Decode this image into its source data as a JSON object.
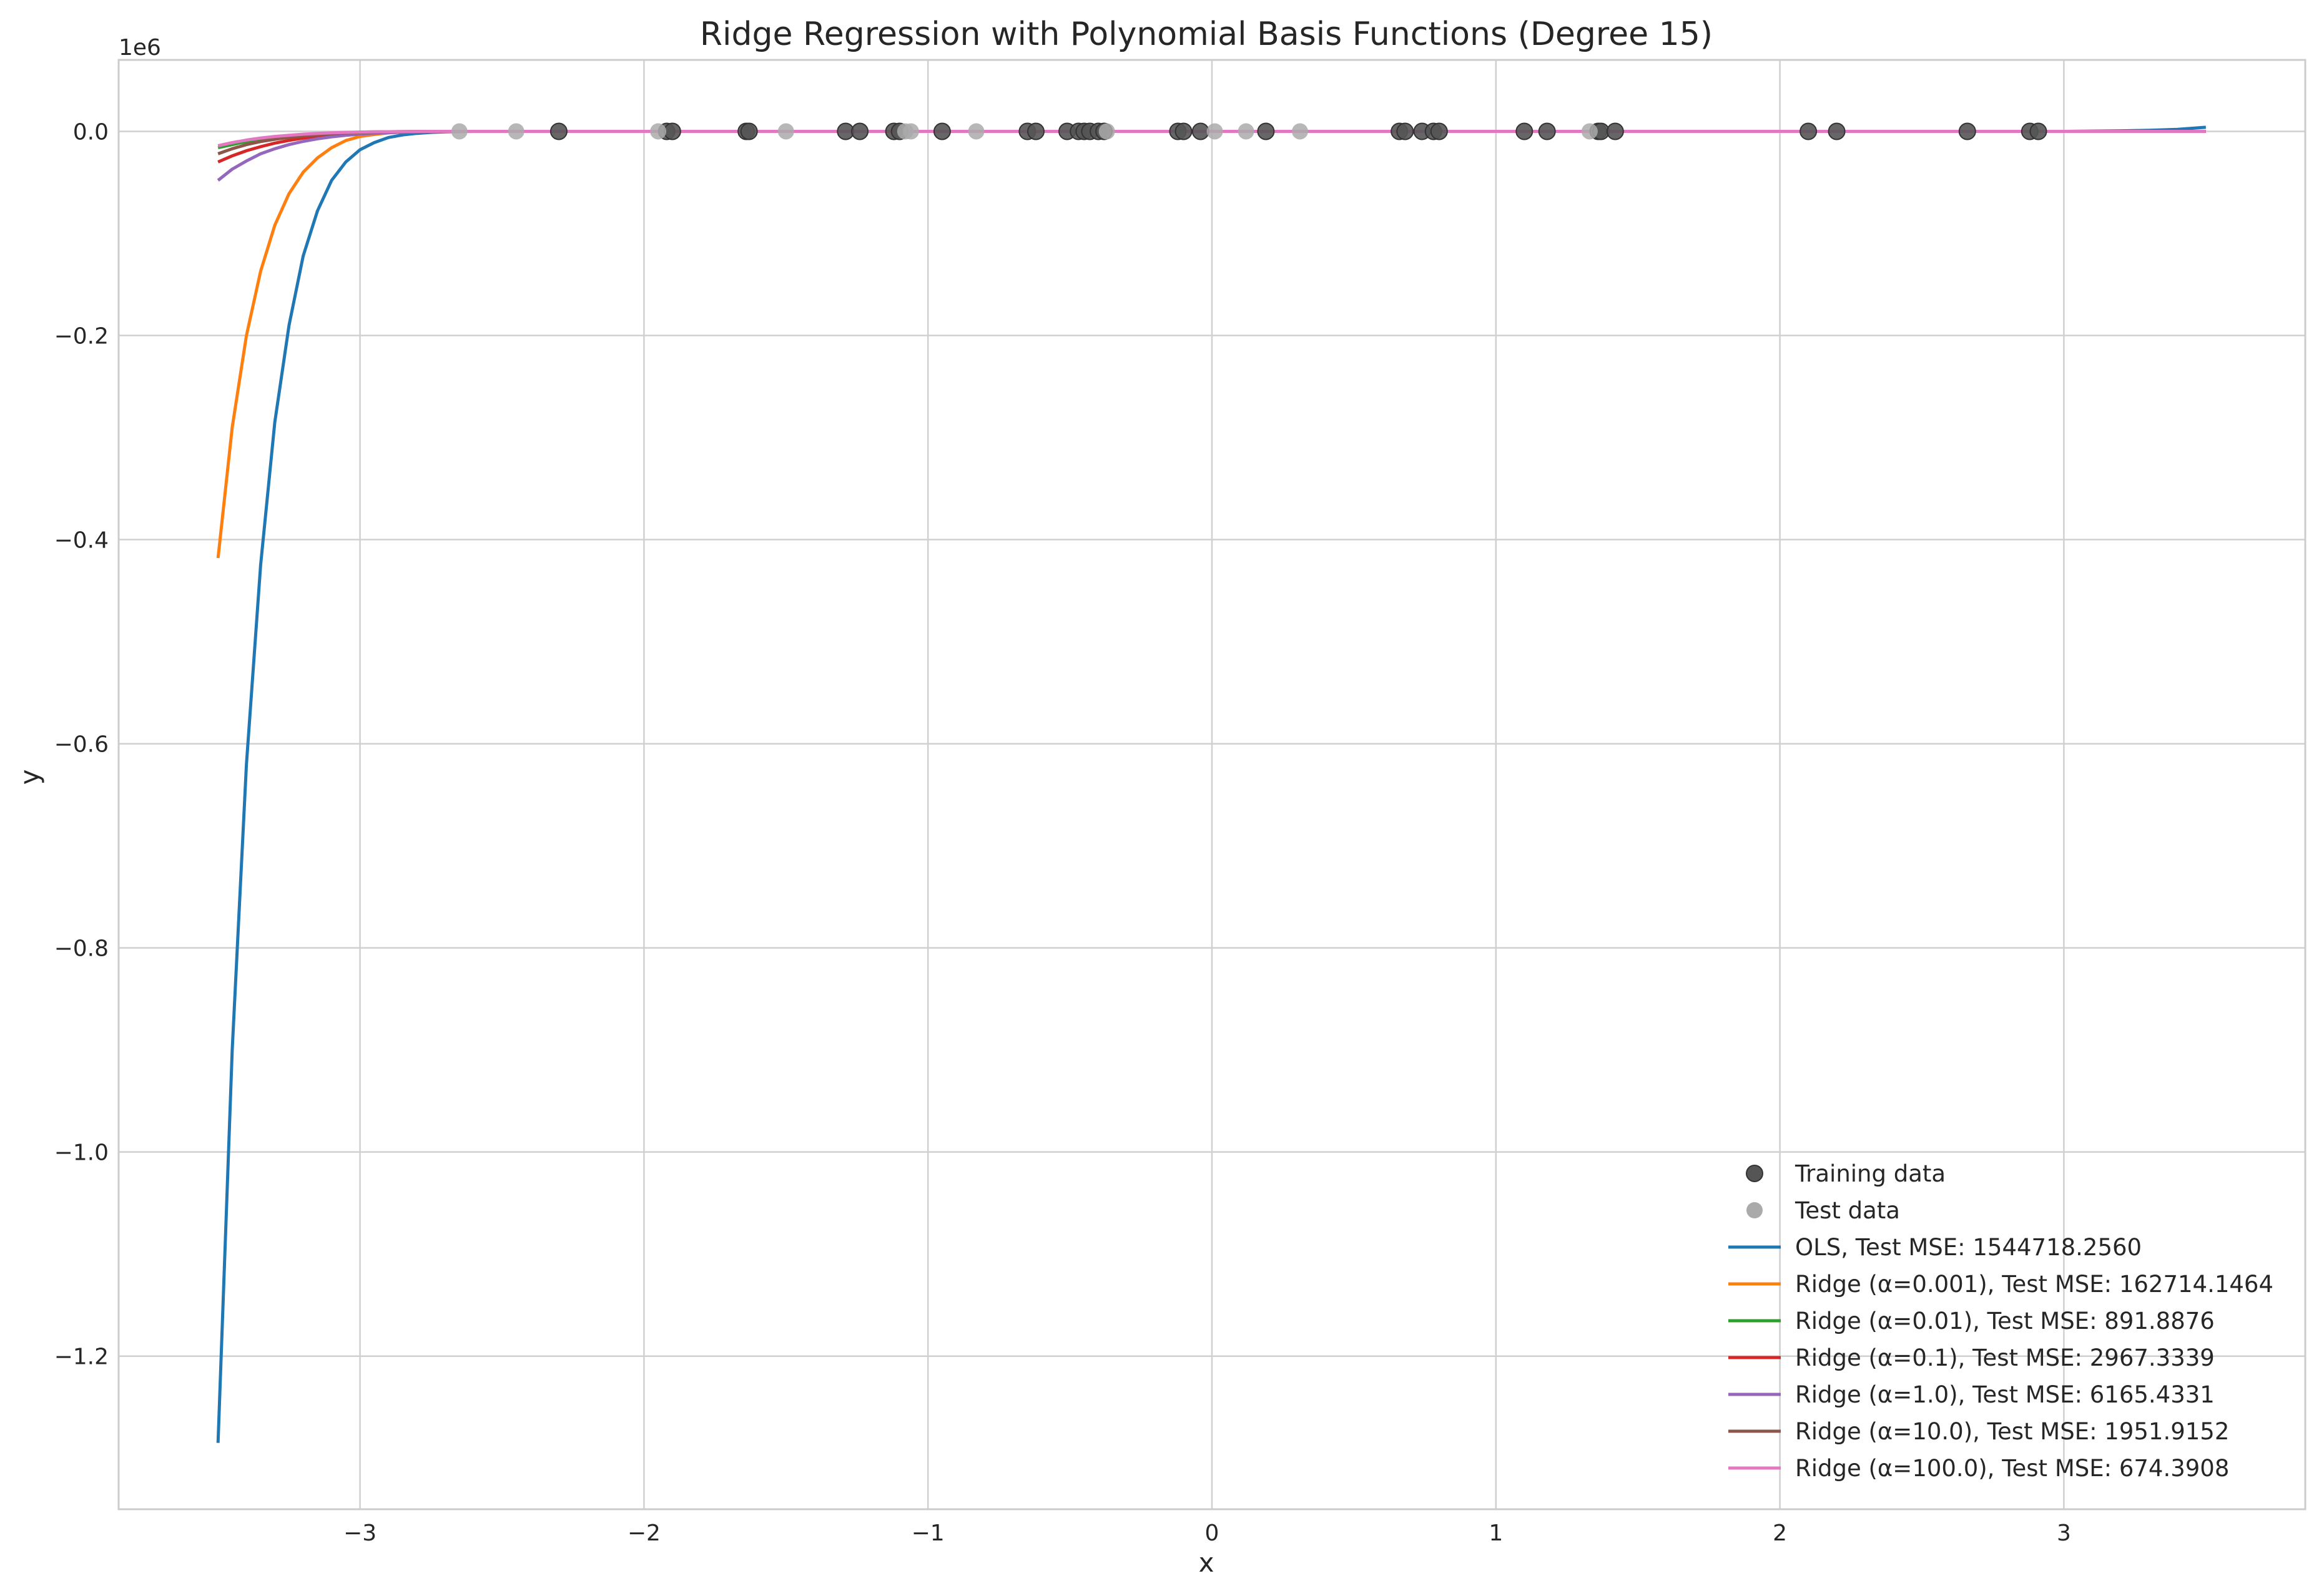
{
  "chart_data": {
    "type": "line",
    "title": "Ridge Regression with Polynomial Basis Functions (Degree 15)",
    "xlabel": "x",
    "ylabel": "y",
    "y_offset_label": "1e6",
    "xlim": [
      -3.85,
      3.85
    ],
    "ylim": [
      -1.35,
      0.07
    ],
    "grid": true,
    "legend_position": "lower-right",
    "x_ticks": [
      -3,
      -2,
      -1,
      0,
      1,
      2,
      3
    ],
    "x_tick_labels": [
      "−3",
      "−2",
      "−1",
      "0",
      "1",
      "2",
      "3"
    ],
    "y_ticks": [
      0.0,
      -0.2,
      -0.4,
      -0.6,
      -0.8,
      -1.0,
      -1.2
    ],
    "y_tick_labels": [
      "0.0",
      "−0.2",
      "−0.4",
      "−0.6",
      "−0.8",
      "−1.0",
      "−1.2"
    ],
    "scatter_series": [
      {
        "name": "Training data",
        "color": "#555555",
        "x": [
          -2.3,
          -1.92,
          -1.9,
          -1.64,
          -1.63,
          -1.29,
          -1.24,
          -1.12,
          -1.1,
          -0.95,
          -0.65,
          -0.62,
          -0.51,
          -0.47,
          -0.45,
          -0.43,
          -0.4,
          -0.38,
          -0.12,
          -0.1,
          -0.04,
          0.19,
          0.66,
          0.68,
          0.74,
          0.78,
          0.8,
          1.1,
          1.18,
          1.36,
          1.37,
          1.42,
          2.1,
          2.2,
          2.66,
          2.88,
          2.91
        ],
        "y": [
          0,
          0,
          0,
          0,
          0,
          0,
          0,
          0,
          0,
          0,
          0,
          0,
          0,
          0,
          0,
          0,
          0,
          0,
          0,
          0,
          0,
          0,
          0,
          0,
          0,
          0,
          0,
          0,
          0,
          0,
          0,
          0,
          0,
          0,
          0,
          0,
          0
        ]
      },
      {
        "name": "Test data",
        "color": "#aaaaaa",
        "x": [
          -2.65,
          -2.45,
          -1.95,
          -1.5,
          -1.08,
          -1.06,
          -0.83,
          -0.37,
          0.01,
          0.12,
          0.31,
          1.33
        ],
        "y": [
          0,
          0,
          0,
          0,
          0,
          0,
          0,
          0,
          0,
          0,
          0,
          0
        ]
      }
    ],
    "x": [
      -3.5,
      -3.45,
      -3.4,
      -3.35,
      -3.3,
      -3.25,
      -3.2,
      -3.15,
      -3.1,
      -3.05,
      -3.0,
      -2.95,
      -2.9,
      -2.85,
      -2.8,
      -2.75,
      -2.7,
      -2.65,
      -2.6,
      -2.5,
      -2.4,
      -2.2,
      -2.0,
      -1.5,
      -1.0,
      0.0,
      1.0,
      2.0,
      2.5,
      3.0,
      3.2,
      3.3,
      3.4,
      3.5
    ],
    "series": [
      {
        "name": "OLS, Test MSE: 1544718.2560",
        "color": "#1f77b4",
        "values": [
          -1.285,
          -0.9,
          -0.62,
          -0.425,
          -0.285,
          -0.19,
          -0.122,
          -0.078,
          -0.048,
          -0.03,
          -0.018,
          -0.011,
          -0.006,
          -0.0035,
          -0.002,
          -0.001,
          -0.0005,
          -0.0002,
          0,
          0,
          0,
          0,
          0,
          0,
          0,
          0,
          0,
          0,
          0,
          0,
          0.0005,
          0.001,
          0.002,
          0.004
        ]
      },
      {
        "name": "Ridge (α=0.001), Test MSE: 162714.1464",
        "color": "#ff7f0e",
        "values": [
          -0.418,
          -0.29,
          -0.2,
          -0.137,
          -0.092,
          -0.061,
          -0.04,
          -0.026,
          -0.016,
          -0.009,
          -0.005,
          -0.003,
          -0.0015,
          -0.0007,
          -0.0003,
          -0.0001,
          0,
          0,
          0,
          0,
          0,
          0,
          0,
          0,
          0,
          0,
          0,
          0,
          0,
          0,
          0,
          0,
          0,
          0
        ]
      },
      {
        "name": "Ridge (α=0.01), Test MSE: 891.8876",
        "color": "#2ca02c",
        "values": [
          -0.016,
          -0.013,
          -0.01,
          -0.008,
          -0.006,
          -0.0045,
          -0.0033,
          -0.0024,
          -0.0017,
          -0.0012,
          -0.0008,
          -0.0005,
          -0.0003,
          -0.0002,
          -0.0001,
          0,
          0,
          0,
          0,
          0,
          0,
          0,
          0,
          0,
          0,
          0,
          0,
          0,
          0,
          0,
          0,
          0,
          0,
          0
        ]
      },
      {
        "name": "Ridge (α=0.1), Test MSE: 2967.3339",
        "color": "#d62728",
        "values": [
          -0.03,
          -0.024,
          -0.019,
          -0.015,
          -0.0115,
          -0.0088,
          -0.0066,
          -0.0049,
          -0.0036,
          -0.0026,
          -0.0018,
          -0.0012,
          -0.0008,
          -0.0005,
          -0.0003,
          -0.0002,
          -0.0001,
          0,
          0,
          0,
          0,
          0,
          0,
          0,
          0,
          0,
          0,
          0,
          0,
          0,
          0,
          0,
          0,
          0
        ]
      },
      {
        "name": "Ridge (α=1.0), Test MSE: 6165.4331",
        "color": "#9467bd",
        "values": [
          -0.048,
          -0.037,
          -0.029,
          -0.022,
          -0.017,
          -0.013,
          -0.0098,
          -0.0073,
          -0.0054,
          -0.0039,
          -0.0028,
          -0.0019,
          -0.0013,
          -0.0008,
          -0.0005,
          -0.0003,
          -0.0002,
          -0.0001,
          0,
          0,
          0,
          0,
          0,
          0,
          0,
          0,
          0,
          0,
          0,
          0,
          0,
          0,
          0,
          0
        ]
      },
      {
        "name": "Ridge (α=10.0), Test MSE: 1951.9152",
        "color": "#8c564b",
        "values": [
          -0.022,
          -0.017,
          -0.013,
          -0.01,
          -0.0078,
          -0.0059,
          -0.0044,
          -0.0033,
          -0.0024,
          -0.0017,
          -0.0012,
          -0.0008,
          -0.0005,
          -0.0003,
          -0.0002,
          -0.0001,
          0,
          0,
          0,
          0,
          0,
          0,
          0,
          0,
          0,
          0,
          0,
          0,
          0,
          0,
          0,
          0,
          0,
          0
        ]
      },
      {
        "name": "Ridge (α=100.0), Test MSE: 674.3908",
        "color": "#e377c2",
        "values": [
          -0.014,
          -0.011,
          -0.0085,
          -0.0065,
          -0.005,
          -0.0038,
          -0.0028,
          -0.002,
          -0.0014,
          -0.001,
          -0.0007,
          -0.0004,
          -0.0003,
          -0.0002,
          -0.0001,
          0,
          0,
          0,
          0,
          0,
          0,
          0,
          0,
          0,
          0,
          0,
          0,
          0,
          0,
          0,
          0,
          0,
          0,
          0
        ]
      }
    ]
  }
}
